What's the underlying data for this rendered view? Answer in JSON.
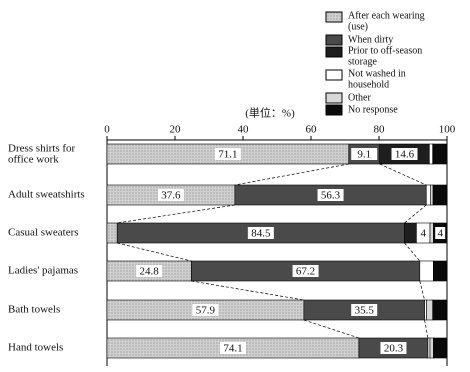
{
  "chart_data": {
    "type": "stacked-bar-horizontal",
    "axis_label": "(単位：%)",
    "categories": [
      "Dress shirts for\noffice work",
      "Adult sweatshirts",
      "Casual sweaters",
      "Ladies' pajamas",
      "Bath towels",
      "Hand towels"
    ],
    "xlim": [
      0,
      100
    ],
    "xticks": [
      0,
      20,
      40,
      60,
      80,
      100
    ],
    "series": [
      {
        "name": "After each wearing\n(use)",
        "color": "#c4c4c4",
        "values": [
          71.1,
          37.6,
          3.0,
          24.8,
          57.9,
          74.1
        ],
        "value_labels": [
          "71.1",
          "37.6",
          null,
          "24.8",
          "57.9",
          "74.1"
        ]
      },
      {
        "name": "When dirty",
        "color": "#4a4a4a",
        "values": [
          9.1,
          56.3,
          84.5,
          67.2,
          35.5,
          20.3
        ],
        "value_labels": [
          "9.1",
          "56.3",
          "84.5",
          "67.2",
          "35.5",
          "20.3"
        ]
      },
      {
        "name": "Prior to off-season\nstorage",
        "color": "#1e1e1e",
        "values": [
          14.6,
          0,
          3.5,
          0,
          0,
          0
        ],
        "value_labels": [
          "14.6",
          null,
          null,
          null,
          null,
          null
        ]
      },
      {
        "name": "Not washed in\nhousehold",
        "color": "#ffffff",
        "values": [
          1.0,
          1.2,
          4,
          4.0,
          0.6,
          0.6
        ],
        "value_labels": [
          null,
          null,
          "4",
          null,
          null,
          null
        ]
      },
      {
        "name": "Other",
        "color": "#d8d8d8",
        "values": [
          0.2,
          0.8,
          1.0,
          0,
          1.8,
          1.0
        ],
        "value_labels": [
          null,
          null,
          null,
          null,
          null,
          null
        ]
      },
      {
        "name": "No response",
        "color": "#0a0a0a",
        "values": [
          4.0,
          4.1,
          4,
          4.0,
          4.2,
          4.0
        ],
        "value_labels": [
          null,
          null,
          "4",
          null,
          null,
          null
        ]
      }
    ]
  }
}
